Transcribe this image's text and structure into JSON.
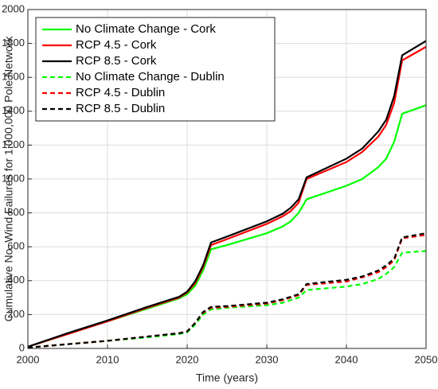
{
  "chart_data": {
    "type": "line",
    "xlabel": "Time (years)",
    "ylabel": "Cumulative No. Wind Failures for 1,000,000 Pole Network",
    "x": [
      2000,
      2005,
      2010,
      2015,
      2019,
      2020,
      2021,
      2022,
      2023,
      2025,
      2030,
      2032,
      2033,
      2034,
      2035,
      2040,
      2042,
      2044,
      2045,
      2046,
      2047,
      2050
    ],
    "series": [
      {
        "name": "No Climate Change - Cork",
        "color": "#00ff00",
        "dashed": false,
        "values": [
          10,
          85,
          160,
          235,
          295,
          320,
          370,
          460,
          585,
          610,
          680,
          720,
          750,
          800,
          880,
          960,
          1000,
          1070,
          1120,
          1220,
          1385,
          1435
        ]
      },
      {
        "name": "RCP 4.5 - Cork",
        "color": "#ff0000",
        "dashed": false,
        "values": [
          10,
          85,
          160,
          240,
          300,
          330,
          385,
          480,
          610,
          645,
          735,
          780,
          810,
          860,
          1000,
          1100,
          1160,
          1250,
          1320,
          1450,
          1700,
          1780
        ]
      },
      {
        "name": "RCP 8.5 - Cork",
        "color": "#000000",
        "dashed": false,
        "values": [
          10,
          90,
          165,
          245,
          305,
          335,
          395,
          490,
          625,
          660,
          750,
          795,
          830,
          880,
          1010,
          1120,
          1180,
          1280,
          1350,
          1490,
          1730,
          1815
        ]
      },
      {
        "name": "No Climate Change - Dublin",
        "color": "#00ff00",
        "dashed": true,
        "values": [
          5,
          25,
          45,
          65,
          85,
          95,
          140,
          200,
          230,
          240,
          255,
          270,
          285,
          300,
          345,
          365,
          380,
          410,
          440,
          480,
          565,
          575
        ]
      },
      {
        "name": "RCP 4.5 - Dublin",
        "color": "#ff0000",
        "dashed": true,
        "values": [
          5,
          25,
          45,
          70,
          90,
          100,
          150,
          210,
          240,
          245,
          265,
          285,
          300,
          315,
          375,
          395,
          420,
          450,
          480,
          520,
          650,
          670
        ]
      },
      {
        "name": "RCP 8.5 - Dublin",
        "color": "#000000",
        "dashed": true,
        "values": [
          5,
          25,
          45,
          70,
          90,
          100,
          150,
          215,
          245,
          250,
          270,
          290,
          305,
          320,
          380,
          405,
          425,
          460,
          490,
          530,
          655,
          680
        ]
      }
    ],
    "xlim": [
      2000,
      2050
    ],
    "xticks": [
      2000,
      2010,
      2020,
      2030,
      2040,
      2050
    ],
    "ylim": [
      0,
      2000
    ],
    "yticks": [
      0,
      200,
      400,
      600,
      800,
      1000,
      1200,
      1400,
      1600,
      1800,
      2000
    ],
    "grid": true,
    "legend": "upper left"
  }
}
